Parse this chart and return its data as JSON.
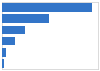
{
  "values": [
    2351,
    1228,
    602,
    339,
    97,
    45
  ],
  "bar_color": "#3375c8",
  "background_color": "#ffffff",
  "xlim": [
    0,
    2500
  ],
  "bar_height": 0.78,
  "grid_color": "#e0e0e0",
  "border_color": "#cccccc",
  "figsize": [
    1.0,
    0.71
  ],
  "dpi": 100
}
